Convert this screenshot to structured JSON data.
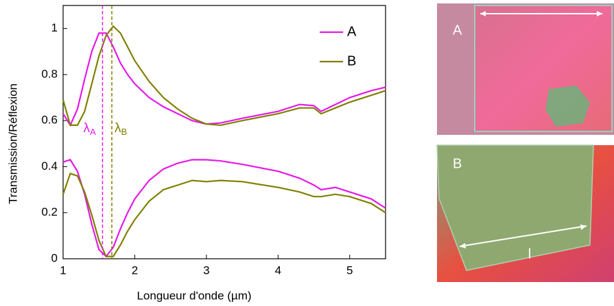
{
  "chart_data": {
    "type": "line",
    "xlabel": "Longueur d'onde (µm)",
    "ylabel": "Transmission/Réflexion",
    "xlim": [
      1,
      5.5
    ],
    "ylim": [
      0,
      1.1
    ],
    "xticks": [
      1,
      2,
      3,
      4,
      5
    ],
    "yticks": [
      0,
      0.2,
      0.4,
      0.6,
      0.8,
      1
    ],
    "x": [
      1,
      1.1,
      1.2,
      1.3,
      1.4,
      1.5,
      1.6,
      1.7,
      1.8,
      1.9,
      2.0,
      2.2,
      2.4,
      2.6,
      2.8,
      3.0,
      3.2,
      3.5,
      4.0,
      4.3,
      4.5,
      4.6,
      4.8,
      5.0,
      5.3,
      5.5
    ],
    "series": [
      {
        "name": "A",
        "color": "#e619e6",
        "values": [
          0.63,
          0.58,
          0.65,
          0.78,
          0.9,
          0.98,
          0.98,
          0.92,
          0.85,
          0.8,
          0.76,
          0.7,
          0.66,
          0.63,
          0.6,
          0.585,
          0.59,
          0.61,
          0.64,
          0.67,
          0.665,
          0.64,
          0.67,
          0.7,
          0.73,
          0.745
        ],
        "reflection": [
          0.42,
          0.43,
          0.38,
          0.28,
          0.15,
          0.04,
          0.01,
          0.05,
          0.13,
          0.2,
          0.26,
          0.34,
          0.39,
          0.415,
          0.43,
          0.43,
          0.425,
          0.41,
          0.38,
          0.35,
          0.32,
          0.3,
          0.31,
          0.29,
          0.26,
          0.22
        ]
      },
      {
        "name": "B",
        "color": "#808000",
        "values": [
          0.69,
          0.58,
          0.58,
          0.64,
          0.76,
          0.88,
          0.97,
          1.01,
          0.98,
          0.92,
          0.86,
          0.77,
          0.7,
          0.65,
          0.61,
          0.585,
          0.58,
          0.6,
          0.63,
          0.655,
          0.655,
          0.63,
          0.655,
          0.68,
          0.71,
          0.73
        ],
        "reflection": [
          0.28,
          0.37,
          0.36,
          0.29,
          0.19,
          0.08,
          0.01,
          0.01,
          0.06,
          0.12,
          0.17,
          0.25,
          0.3,
          0.32,
          0.34,
          0.335,
          0.34,
          0.335,
          0.31,
          0.29,
          0.27,
          0.27,
          0.28,
          0.27,
          0.24,
          0.2
        ]
      }
    ],
    "markers": [
      {
        "x": 1.55,
        "color": "#e619e6",
        "label": "λ",
        "sub": "A"
      },
      {
        "x": 1.68,
        "color": "#808000",
        "label": "λ",
        "sub": "B"
      }
    ],
    "legend": "upper right"
  },
  "images": [
    {
      "label": "A"
    },
    {
      "label": "B",
      "dimension": "l"
    }
  ]
}
